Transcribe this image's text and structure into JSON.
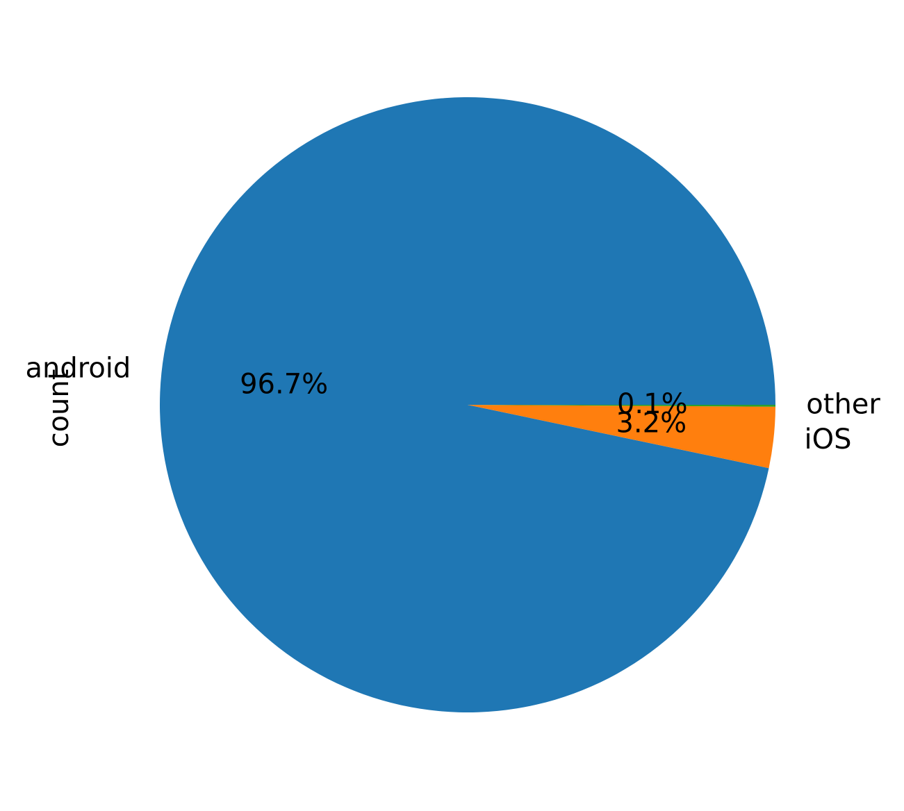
{
  "chart_data": {
    "type": "pie",
    "ylabel": "count",
    "slices": [
      {
        "label": "android",
        "percent": 96.7,
        "pct_label": "96.7%",
        "color": "#1f77b4"
      },
      {
        "label": "iOS",
        "percent": 3.2,
        "pct_label": "3.2%",
        "color": "#ff7f0e"
      },
      {
        "label": "other",
        "percent": 0.1,
        "pct_label": "0.1%",
        "color": "#2ca02c"
      }
    ]
  }
}
